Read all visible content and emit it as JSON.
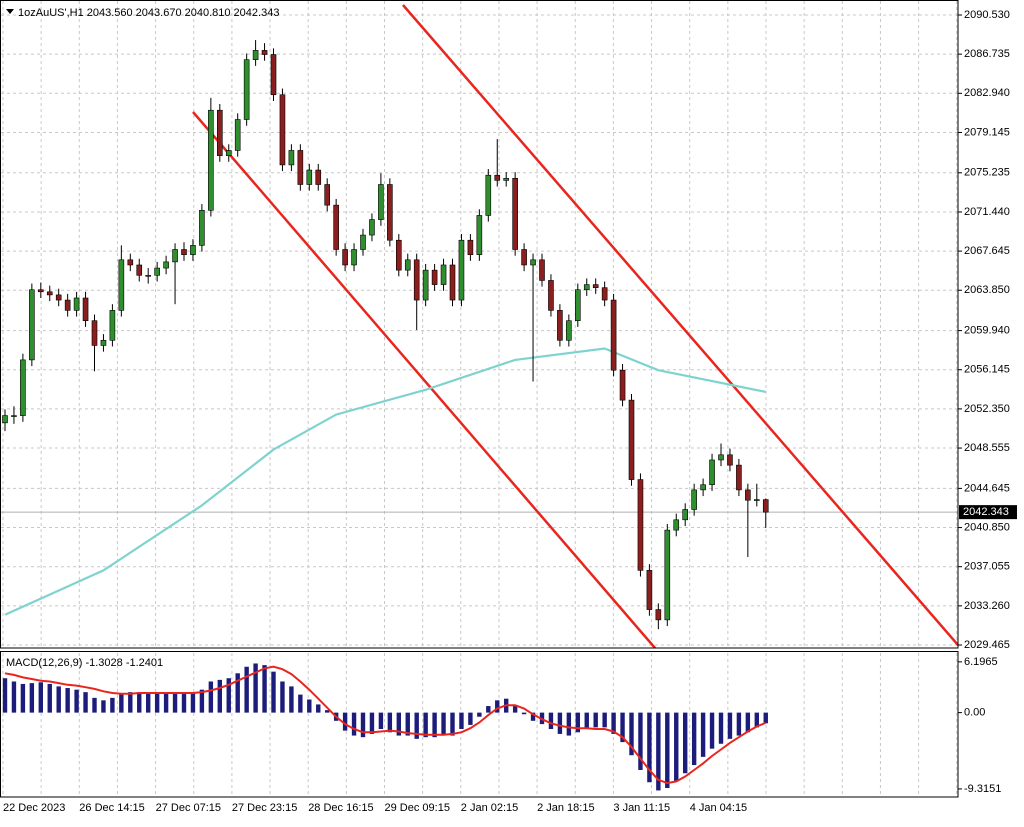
{
  "chart_data": [
    {
      "type": "candlestick",
      "title": "1ozAuUS',H1  2043.560 2043.670 2040.810 2042.343",
      "current_label": "2042.343",
      "up_color": "#2f8f2f",
      "down_color": "#8b1e1e",
      "grid": true,
      "ylim": [
        2029.465,
        2090.53
      ],
      "yticks": [
        {
          "value": 2090.53,
          "label": "2090.530"
        },
        {
          "value": 2086.735,
          "label": "2086.735"
        },
        {
          "value": 2082.94,
          "label": "2082.940"
        },
        {
          "value": 2079.145,
          "label": "2079.145"
        },
        {
          "value": 2075.235,
          "label": "2075.235"
        },
        {
          "value": 2071.44,
          "label": "2071.440"
        },
        {
          "value": 2067.645,
          "label": "2067.645"
        },
        {
          "value": 2063.85,
          "label": "2063.850"
        },
        {
          "value": 2059.94,
          "label": "2059.940"
        },
        {
          "value": 2056.145,
          "label": "2056.145"
        },
        {
          "value": 2052.35,
          "label": "2052.350"
        },
        {
          "value": 2048.555,
          "label": "2048.555"
        },
        {
          "value": 2044.645,
          "label": "2044.645"
        },
        {
          "value": 2040.85,
          "label": "2040.850"
        },
        {
          "value": 2037.055,
          "label": "2037.055"
        },
        {
          "value": 2033.26,
          "label": "2033.260"
        },
        {
          "value": 2029.465,
          "label": "2029.465"
        }
      ],
      "candles": [
        [
          2051.0,
          2052.3,
          2050.2,
          2051.7
        ],
        [
          2051.7,
          2052.6,
          2050.9,
          2051.7
        ],
        [
          2051.7,
          2057.7,
          2051.1,
          2057.1
        ],
        [
          2057.1,
          2064.5,
          2056.5,
          2063.9
        ],
        [
          2063.9,
          2064.6,
          2063.1,
          2063.7
        ],
        [
          2063.7,
          2064.3,
          2062.8,
          2063.4
        ],
        [
          2063.4,
          2064.0,
          2062.3,
          2062.9
        ],
        [
          2062.9,
          2063.5,
          2061.3,
          2061.9
        ],
        [
          2061.9,
          2063.7,
          2061.3,
          2063.1
        ],
        [
          2063.1,
          2063.7,
          2060.3,
          2060.9
        ],
        [
          2060.9,
          2061.5,
          2056.0,
          2058.5
        ],
        [
          2058.5,
          2059.6,
          2057.9,
          2059.0
        ],
        [
          2059.0,
          2062.5,
          2058.4,
          2061.9
        ],
        [
          2061.9,
          2068.2,
          2061.3,
          2066.8
        ],
        [
          2066.8,
          2067.4,
          2065.7,
          2066.3
        ],
        [
          2066.3,
          2066.9,
          2064.7,
          2065.3
        ],
        [
          2065.3,
          2066.0,
          2064.5,
          2065.3
        ],
        [
          2065.3,
          2066.6,
          2064.7,
          2066.0
        ],
        [
          2066.0,
          2067.2,
          2065.4,
          2066.6
        ],
        [
          2066.6,
          2068.4,
          2062.5,
          2067.8
        ],
        [
          2067.8,
          2068.5,
          2066.7,
          2067.3
        ],
        [
          2067.3,
          2068.8,
          2066.7,
          2068.2
        ],
        [
          2068.2,
          2072.2,
          2067.6,
          2071.6
        ],
        [
          2071.6,
          2082.5,
          2071.0,
          2081.3
        ],
        [
          2081.3,
          2081.9,
          2076.3,
          2076.9
        ],
        [
          2076.9,
          2078.0,
          2076.3,
          2077.4
        ],
        [
          2077.4,
          2081.0,
          2076.8,
          2080.4
        ],
        [
          2080.4,
          2086.8,
          2079.8,
          2086.2
        ],
        [
          2086.2,
          2088.1,
          2085.6,
          2087.1
        ],
        [
          2087.1,
          2087.8,
          2086.1,
          2086.7
        ],
        [
          2086.7,
          2087.3,
          2082.2,
          2082.8
        ],
        [
          2082.8,
          2083.4,
          2075.4,
          2076.0
        ],
        [
          2076.0,
          2078.0,
          2075.4,
          2077.4
        ],
        [
          2077.4,
          2078.0,
          2073.5,
          2074.1
        ],
        [
          2074.1,
          2076.1,
          2073.5,
          2075.5
        ],
        [
          2075.5,
          2076.1,
          2073.5,
          2074.1
        ],
        [
          2074.1,
          2074.7,
          2071.5,
          2072.1
        ],
        [
          2072.1,
          2072.7,
          2067.2,
          2067.8
        ],
        [
          2067.8,
          2068.4,
          2065.7,
          2066.3
        ],
        [
          2066.3,
          2068.4,
          2065.7,
          2067.8
        ],
        [
          2067.8,
          2069.8,
          2067.2,
          2069.2
        ],
        [
          2069.2,
          2071.3,
          2068.6,
          2070.7
        ],
        [
          2070.7,
          2075.2,
          2070.1,
          2074.1
        ],
        [
          2074.1,
          2074.7,
          2068.1,
          2068.7
        ],
        [
          2068.7,
          2069.3,
          2065.2,
          2065.8
        ],
        [
          2065.8,
          2067.4,
          2065.2,
          2066.8
        ],
        [
          2066.8,
          2067.4,
          2060.0,
          2062.9
        ],
        [
          2062.9,
          2066.4,
          2062.3,
          2065.8
        ],
        [
          2065.8,
          2066.4,
          2063.8,
          2064.4
        ],
        [
          2064.4,
          2066.9,
          2063.8,
          2066.3
        ],
        [
          2066.3,
          2066.9,
          2062.3,
          2062.9
        ],
        [
          2062.9,
          2069.3,
          2062.3,
          2068.7
        ],
        [
          2068.7,
          2069.3,
          2066.7,
          2067.3
        ],
        [
          2067.3,
          2071.7,
          2066.7,
          2071.1
        ],
        [
          2071.1,
          2075.6,
          2070.5,
          2075.0
        ],
        [
          2075.0,
          2078.5,
          2073.9,
          2074.5
        ],
        [
          2074.5,
          2075.3,
          2073.9,
          2074.7
        ],
        [
          2074.7,
          2075.3,
          2067.2,
          2067.8
        ],
        [
          2067.8,
          2068.4,
          2065.7,
          2066.3
        ],
        [
          2066.3,
          2067.4,
          2055.0,
          2066.8
        ],
        [
          2066.8,
          2067.4,
          2064.2,
          2064.8
        ],
        [
          2064.8,
          2065.4,
          2061.3,
          2061.9
        ],
        [
          2061.9,
          2062.5,
          2058.4,
          2059.0
        ],
        [
          2059.0,
          2061.5,
          2058.4,
          2060.9
        ],
        [
          2060.9,
          2064.5,
          2060.3,
          2063.9
        ],
        [
          2063.9,
          2065.0,
          2063.3,
          2064.4
        ],
        [
          2064.4,
          2065.0,
          2063.5,
          2064.1
        ],
        [
          2064.1,
          2064.7,
          2062.3,
          2062.9
        ],
        [
          2062.9,
          2063.5,
          2055.5,
          2056.1
        ],
        [
          2056.1,
          2056.7,
          2052.6,
          2053.2
        ],
        [
          2053.2,
          2053.8,
          2044.9,
          2045.5
        ],
        [
          2045.5,
          2046.1,
          2036.1,
          2036.7
        ],
        [
          2036.7,
          2037.3,
          2032.3,
          2032.9
        ],
        [
          2032.9,
          2033.5,
          2031.0,
          2031.9
        ],
        [
          2031.9,
          2041.2,
          2031.3,
          2040.6
        ],
        [
          2040.6,
          2042.2,
          2040.0,
          2041.6
        ],
        [
          2041.6,
          2043.2,
          2041.0,
          2042.6
        ],
        [
          2042.6,
          2045.1,
          2042.0,
          2044.5
        ],
        [
          2044.5,
          2045.6,
          2043.9,
          2045.0
        ],
        [
          2045.0,
          2048.0,
          2044.4,
          2047.4
        ],
        [
          2047.4,
          2049.0,
          2046.8,
          2047.9
        ],
        [
          2047.9,
          2048.5,
          2046.3,
          2046.9
        ],
        [
          2046.9,
          2047.5,
          2043.9,
          2044.5
        ],
        [
          2044.5,
          2045.1,
          2038.0,
          2043.5
        ],
        [
          2043.5,
          2045.1,
          2042.9,
          2043.56
        ],
        [
          2043.56,
          2043.67,
          2040.81,
          2042.343
        ]
      ],
      "ma": {
        "color": "#7fd3cf",
        "x": [
          0,
          11,
          22,
          30,
          37,
          47,
          57,
          67,
          73,
          85
        ],
        "values": [
          2032.4,
          2036.7,
          2043.0,
          2048.4,
          2051.8,
          2054.2,
          2057.1,
          2058.2,
          2056.1,
          2054.0
        ]
      }
    },
    {
      "type": "macd",
      "title": "MACD(12,26,9) -1.3028 -1.2401",
      "ylim": [
        -10.3,
        7.4
      ],
      "yticks": [
        6.1965,
        {
          "value": 0,
          "label": "0.00"
        },
        -9.3151
      ],
      "x_labels": [
        "22 Dec 2023",
        "26 Dec 14:15",
        "27 Dec 07:15",
        "27 Dec 23:15",
        "28 Dec 16:15",
        "29 Dec 09:15",
        "2 Jan 02:15",
        "2 Jan 18:15",
        "3 Jan 11:15",
        "4 Jan 04:15"
      ],
      "histogram": {
        "color": "#1c1c7a",
        "values": [
          4.2,
          3.8,
          3.5,
          3.6,
          3.7,
          3.5,
          3.2,
          3.0,
          2.8,
          2.5,
          1.8,
          1.5,
          1.8,
          2.3,
          2.5,
          2.5,
          2.4,
          2.4,
          2.4,
          2.5,
          2.4,
          2.5,
          2.8,
          3.8,
          4.0,
          4.2,
          4.8,
          5.6,
          6.0,
          5.8,
          5.0,
          3.8,
          3.2,
          2.2,
          1.6,
          1.0,
          0.3,
          -1.0,
          -2.2,
          -2.8,
          -3.0,
          -2.6,
          -2.0,
          -2.4,
          -2.8,
          -2.8,
          -3.2,
          -3.0,
          -3.0,
          -2.8,
          -2.8,
          -2.0,
          -1.5,
          -0.5,
          0.8,
          1.5,
          1.7,
          0.8,
          -0.2,
          -1.0,
          -1.4,
          -2.0,
          -2.6,
          -2.8,
          -2.4,
          -2.0,
          -1.8,
          -1.8,
          -2.6,
          -3.6,
          -5.2,
          -7.0,
          -8.5,
          -9.5,
          -9.2,
          -8.4,
          -7.4,
          -6.4,
          -5.4,
          -4.4,
          -3.8,
          -3.2,
          -2.8,
          -2.4,
          -1.8,
          -1.3028
        ]
      },
      "signal": {
        "color": "#e8261e",
        "values": [
          4.8,
          4.6,
          4.3,
          4.1,
          3.9,
          3.8,
          3.6,
          3.4,
          3.3,
          3.1,
          2.9,
          2.6,
          2.4,
          2.3,
          2.3,
          2.4,
          2.4,
          2.4,
          2.4,
          2.4,
          2.4,
          2.4,
          2.5,
          2.7,
          3.0,
          3.4,
          3.9,
          4.4,
          4.9,
          5.4,
          5.6,
          5.3,
          4.7,
          3.8,
          2.8,
          1.7,
          0.6,
          -0.5,
          -1.4,
          -2.0,
          -2.4,
          -2.4,
          -2.3,
          -2.2,
          -2.3,
          -2.5,
          -2.6,
          -2.7,
          -2.7,
          -2.7,
          -2.6,
          -2.4,
          -1.9,
          -1.2,
          -0.3,
          0.5,
          0.9,
          0.9,
          0.5,
          -0.2,
          -0.8,
          -1.3,
          -1.6,
          -1.8,
          -1.9,
          -1.9,
          -2.0,
          -2.0,
          -2.3,
          -3.0,
          -4.2,
          -5.6,
          -7.0,
          -8.2,
          -8.6,
          -8.4,
          -7.8,
          -7.0,
          -6.2,
          -5.3,
          -4.5,
          -3.7,
          -3.0,
          -2.3,
          -1.7,
          -1.2401
        ]
      }
    }
  ]
}
